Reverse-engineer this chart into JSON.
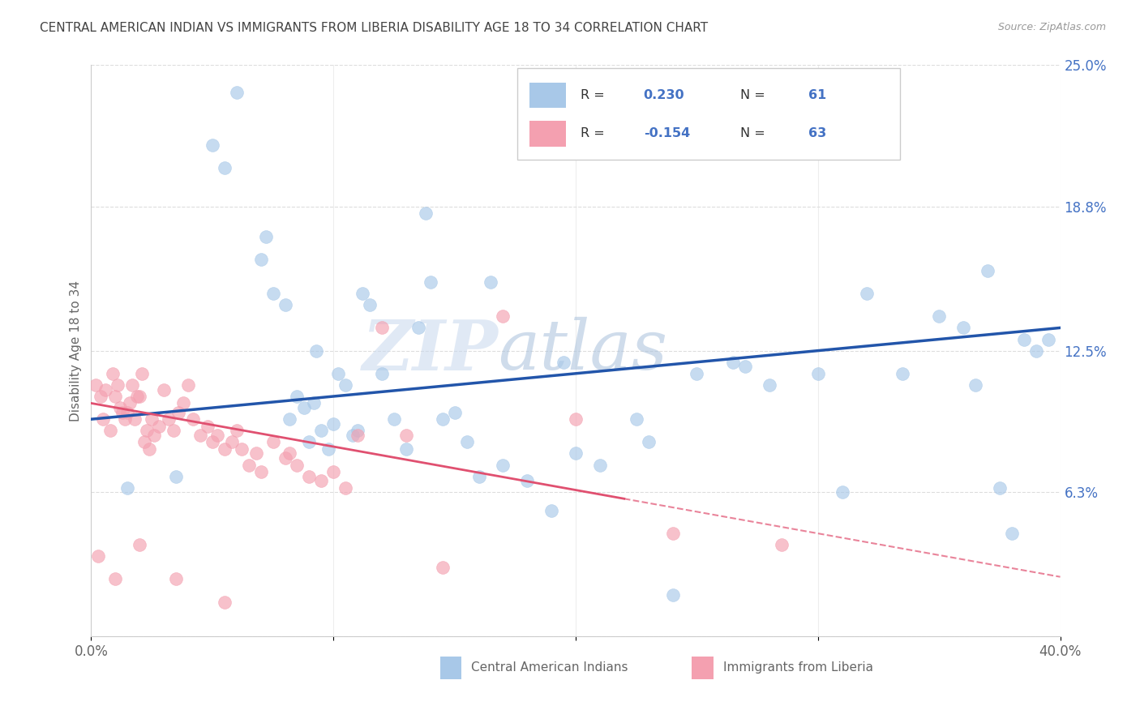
{
  "title": "CENTRAL AMERICAN INDIAN VS IMMIGRANTS FROM LIBERIA DISABILITY AGE 18 TO 34 CORRELATION CHART",
  "source": "Source: ZipAtlas.com",
  "ylabel": "Disability Age 18 to 34",
  "ytick_vals": [
    0.0,
    6.3,
    12.5,
    18.8,
    25.0
  ],
  "ytick_labels": [
    "",
    "6.3%",
    "12.5%",
    "18.8%",
    "25.0%"
  ],
  "xlim": [
    0.0,
    40.0
  ],
  "ylim": [
    0.0,
    25.0
  ],
  "legend_label_blue": "Central American Indians",
  "legend_label_pink": "Immigrants from Liberia",
  "blue_color": "#a8c8e8",
  "pink_color": "#f4a0b0",
  "trend_blue_color": "#2255aa",
  "trend_pink_color": "#e05070",
  "watermark_color": "#d8e8f8",
  "background_color": "#ffffff",
  "grid_color": "#dddddd",
  "title_color": "#444444",
  "axis_label_color": "#666666",
  "right_tick_color": "#4472c4",
  "blue_x": [
    1.5,
    3.5,
    5.5,
    6.0,
    7.0,
    7.5,
    8.0,
    8.2,
    8.5,
    8.8,
    9.0,
    9.2,
    9.5,
    9.8,
    10.0,
    10.2,
    10.5,
    10.8,
    11.0,
    11.5,
    12.0,
    12.5,
    13.0,
    13.5,
    14.0,
    14.5,
    15.0,
    15.5,
    16.0,
    17.0,
    18.0,
    19.0,
    20.0,
    21.0,
    22.5,
    24.0,
    25.0,
    26.5,
    28.0,
    30.0,
    32.0,
    33.5,
    35.0,
    36.5,
    37.0,
    37.5,
    38.0,
    38.5,
    39.0,
    39.5,
    5.0,
    7.2,
    9.3,
    11.2,
    13.8,
    16.5,
    19.5,
    23.0,
    27.0,
    31.0,
    36.0
  ],
  "blue_y": [
    6.5,
    7.0,
    20.5,
    23.8,
    16.5,
    15.0,
    14.5,
    9.5,
    10.5,
    10.0,
    8.5,
    10.2,
    9.0,
    8.2,
    9.3,
    11.5,
    11.0,
    8.8,
    9.0,
    14.5,
    11.5,
    9.5,
    8.2,
    13.5,
    15.5,
    9.5,
    9.8,
    8.5,
    7.0,
    7.5,
    6.8,
    5.5,
    8.0,
    7.5,
    9.5,
    1.8,
    11.5,
    12.0,
    11.0,
    11.5,
    15.0,
    11.5,
    14.0,
    11.0,
    16.0,
    6.5,
    4.5,
    13.0,
    12.5,
    13.0,
    21.5,
    17.5,
    12.5,
    15.0,
    18.5,
    15.5,
    12.0,
    8.5,
    11.8,
    6.3,
    13.5
  ],
  "pink_x": [
    0.2,
    0.4,
    0.5,
    0.6,
    0.8,
    0.9,
    1.0,
    1.1,
    1.2,
    1.3,
    1.4,
    1.5,
    1.6,
    1.7,
    1.8,
    1.9,
    2.0,
    2.1,
    2.2,
    2.3,
    2.4,
    2.5,
    2.6,
    2.8,
    3.0,
    3.2,
    3.4,
    3.6,
    3.8,
    4.0,
    4.2,
    4.5,
    4.8,
    5.0,
    5.2,
    5.5,
    5.8,
    6.0,
    6.2,
    6.5,
    6.8,
    7.0,
    7.5,
    8.0,
    8.5,
    9.0,
    9.5,
    10.0,
    10.5,
    11.0,
    12.0,
    13.0,
    14.5,
    17.0,
    20.0,
    24.0,
    28.5,
    0.3,
    1.0,
    2.0,
    3.5,
    5.5,
    8.2
  ],
  "pink_y": [
    11.0,
    10.5,
    9.5,
    10.8,
    9.0,
    11.5,
    10.5,
    11.0,
    10.0,
    9.8,
    9.5,
    9.8,
    10.2,
    11.0,
    9.5,
    10.5,
    10.5,
    11.5,
    8.5,
    9.0,
    8.2,
    9.5,
    8.8,
    9.2,
    10.8,
    9.5,
    9.0,
    9.8,
    10.2,
    11.0,
    9.5,
    8.8,
    9.2,
    8.5,
    8.8,
    8.2,
    8.5,
    9.0,
    8.2,
    7.5,
    8.0,
    7.2,
    8.5,
    7.8,
    7.5,
    7.0,
    6.8,
    7.2,
    6.5,
    8.8,
    13.5,
    8.8,
    3.0,
    14.0,
    9.5,
    4.5,
    4.0,
    3.5,
    2.5,
    4.0,
    2.5,
    1.5,
    8.0
  ]
}
